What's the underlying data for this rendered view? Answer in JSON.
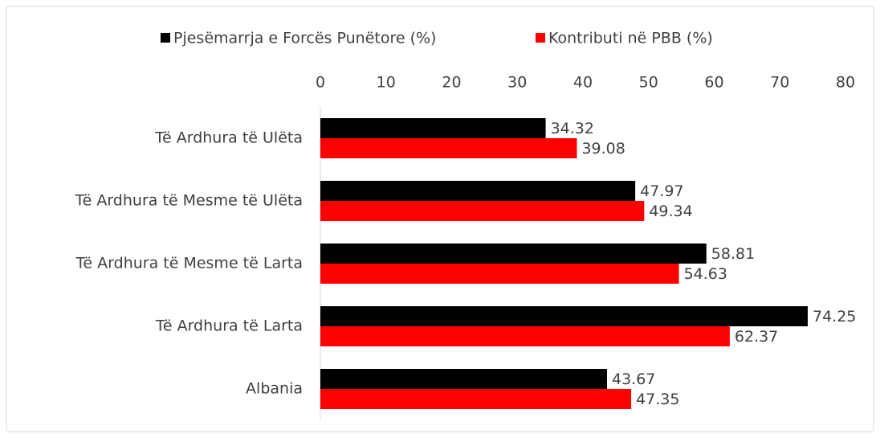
{
  "chart_data": {
    "type": "bar",
    "orientation": "horizontal",
    "categories": [
      "Të Ardhura të Ulëta",
      "Të Ardhura të Mesme të Ulëta",
      "Të Ardhura të Mesme të Larta",
      "Të Ardhura të Larta",
      "Albania"
    ],
    "series": [
      {
        "name": "Pjesëmarrja e Forcës Punëtore (%)",
        "color": "#000000",
        "values": [
          34.32,
          47.97,
          58.81,
          74.25,
          43.67
        ]
      },
      {
        "name": "Kontributi në PBB (%)",
        "color": "#ff0000",
        "values": [
          39.08,
          49.34,
          54.63,
          62.37,
          47.35
        ]
      }
    ],
    "xlim": [
      0,
      80
    ],
    "xticks": [
      0,
      10,
      20,
      30,
      40,
      50,
      60,
      70,
      80
    ],
    "legend": "top",
    "grid": false
  }
}
